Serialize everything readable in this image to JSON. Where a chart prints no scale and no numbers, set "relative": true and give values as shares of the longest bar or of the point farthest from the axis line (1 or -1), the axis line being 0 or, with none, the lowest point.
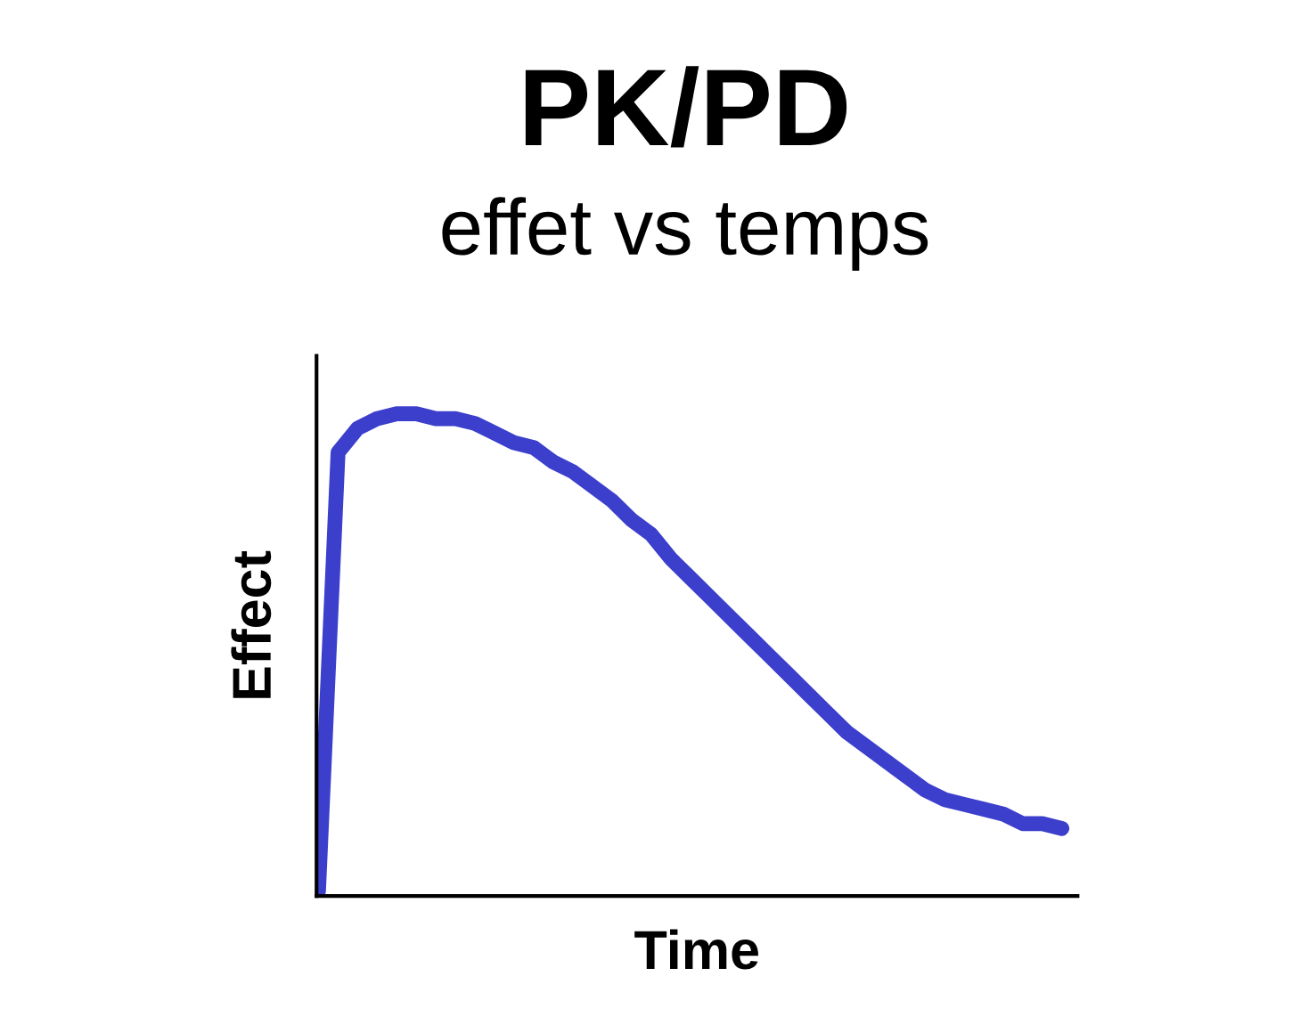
{
  "chart_data": {
    "type": "line",
    "title": "PK/PD",
    "subtitle": "effet vs temps",
    "xlabel": "Time",
    "ylabel": "Effect",
    "relative": true,
    "categories": [
      null,
      null,
      null,
      null,
      null,
      null,
      null,
      null,
      null,
      null,
      null,
      null,
      null,
      null,
      null,
      null,
      null,
      null,
      null,
      null,
      null,
      null,
      null,
      null,
      null,
      null,
      null,
      null,
      null,
      null,
      null,
      null,
      null,
      null,
      null,
      null,
      null,
      null,
      null
    ],
    "series": [
      {
        "color": "#3b3fcc",
        "values": [
          0.01,
          0.92,
          0.97,
          0.99,
          1.0,
          1.0,
          0.99,
          0.99,
          0.98,
          0.96,
          0.94,
          0.93,
          0.9,
          0.88,
          0.85,
          0.82,
          0.78,
          0.75,
          0.7,
          0.66,
          0.62,
          0.58,
          0.54,
          0.5,
          0.46,
          0.42,
          0.38,
          0.34,
          0.31,
          0.28,
          0.25,
          0.22,
          0.2,
          0.19,
          0.18,
          0.17,
          0.15,
          0.15,
          0.14
        ]
      }
    ],
    "marker": "none",
    "line_style": "solid",
    "grid": false,
    "legend": false
  }
}
